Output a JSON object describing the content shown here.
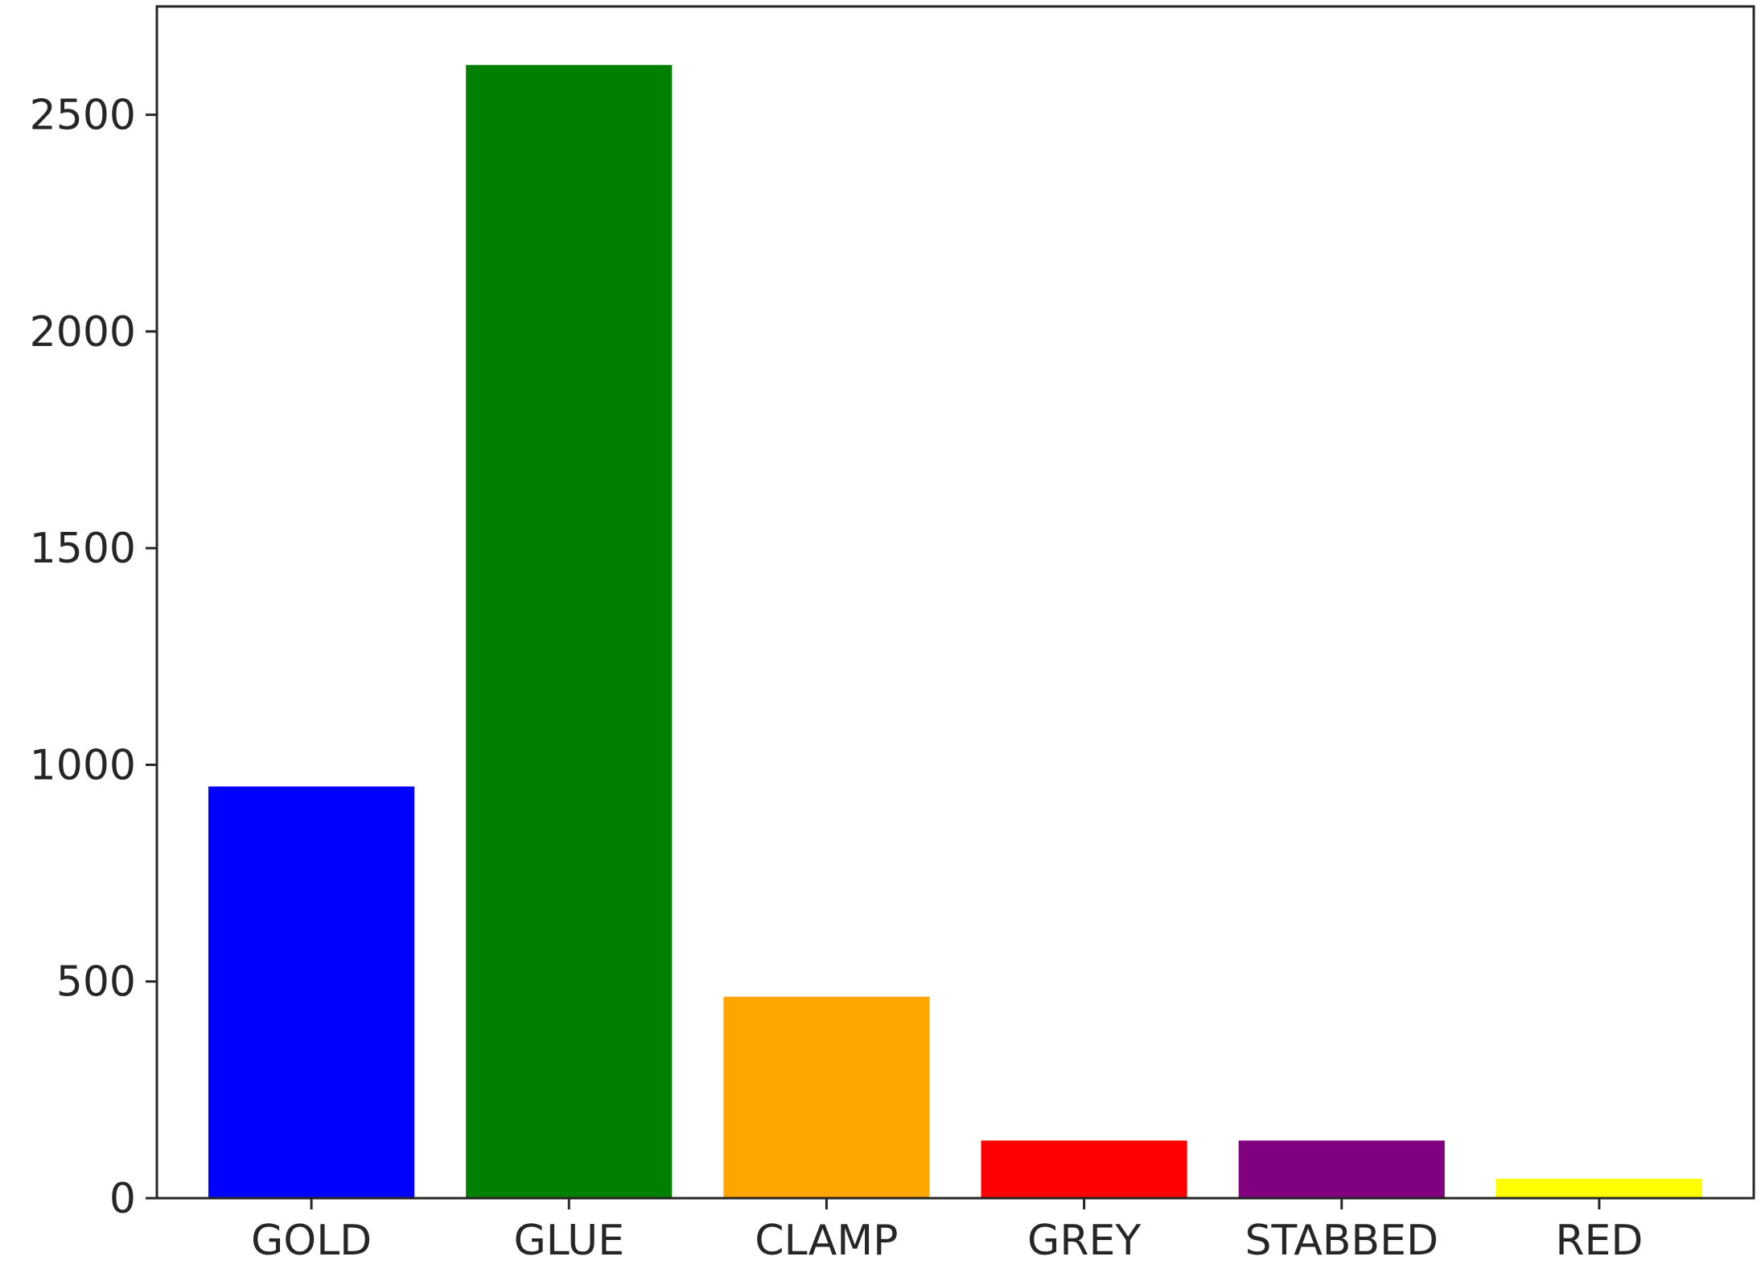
{
  "chart_data": {
    "type": "bar",
    "title": "",
    "xlabel": "",
    "ylabel": "",
    "categories": [
      "GOLD",
      "GLUE",
      "CLAMP",
      "GREY",
      "STABBED",
      "RED"
    ],
    "values": [
      950,
      2615,
      465,
      133,
      133,
      45
    ],
    "colors": [
      "#0000ff",
      "#008000",
      "#ffa500",
      "#ff0000",
      "#800080",
      "#ffff00"
    ],
    "ylim": [
      0,
      2750
    ],
    "yticks": [
      0,
      500,
      1000,
      1500,
      2000,
      2500
    ],
    "grid": false,
    "legend": "none"
  }
}
